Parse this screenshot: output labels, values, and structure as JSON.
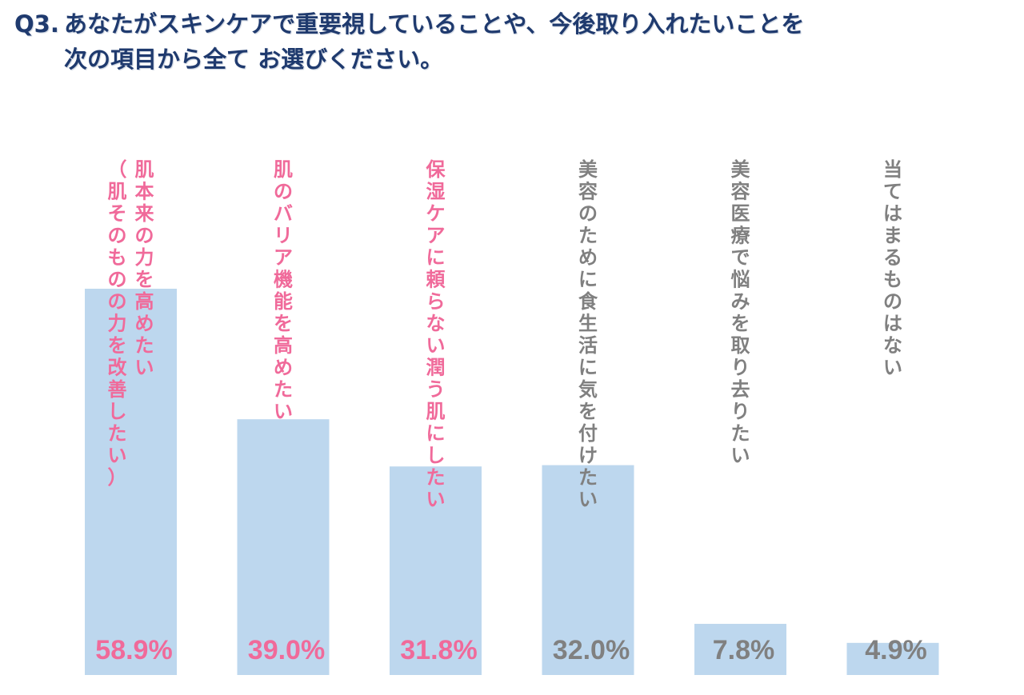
{
  "chart_data": {
    "type": "bar",
    "title_number": "Q3.",
    "title_line1": "あなたがスキンケアで重要視していることや、今後取り入れたいことを",
    "title_line2": "次の項目から全て お選びください。",
    "categories": [
      [
        "肌本来の力を高めたい",
        "（肌そのものの力を改善したい）"
      ],
      [
        "肌のバリア機能を高めたい"
      ],
      [
        "保湿ケアに頼らない潤う肌にしたい"
      ],
      [
        "美容のために食生活に気を付けたい"
      ],
      [
        "美容医療で悩みを取り去りたい"
      ],
      [
        "当てはまるものはない"
      ]
    ],
    "values": [
      58.9,
      39.0,
      31.8,
      32.0,
      7.8,
      4.9
    ],
    "value_labels": [
      "58.9%",
      "39.0%",
      "31.8%",
      "32.0%",
      "7.8%",
      "4.9%"
    ],
    "ylim": [
      0,
      100
    ],
    "bar_color": "#bdd7ee",
    "label_colors": [
      "#f06a9a",
      "#f06a9a",
      "#f06a9a",
      "#808080",
      "#808080",
      "#808080"
    ],
    "title_color": "#1f3a6e"
  }
}
